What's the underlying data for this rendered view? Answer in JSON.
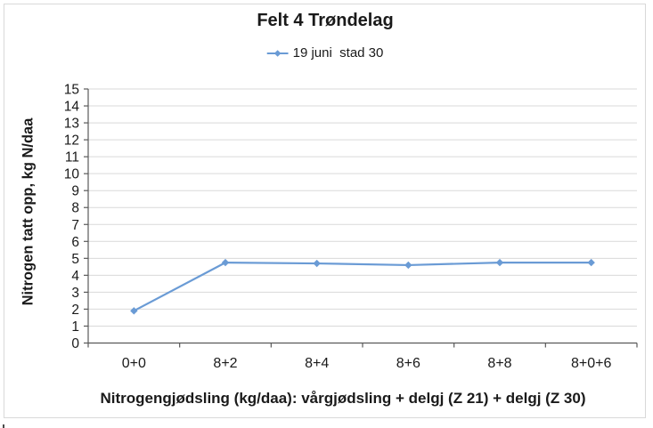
{
  "frame": {
    "border_color": "#d9d9d9",
    "background": "#ffffff"
  },
  "chart_data": {
    "type": "line",
    "title": "Felt 4 Trøndelag",
    "categories": [
      "0+0",
      "8+2",
      "8+4",
      "8+6",
      "8+8",
      "8+0+6"
    ],
    "series": [
      {
        "name": "19 juni  stad 30",
        "values": [
          1.9,
          4.75,
          4.7,
          4.6,
          4.75,
          4.75
        ],
        "color": "#6a9bd5",
        "marker": "diamond"
      }
    ],
    "xlabel": "Nitrogengjødsling (kg/daa): vårgjødsling + delgj (Z 21) + delgj (Z 30)",
    "ylabel": "Nitrogen tatt opp, kg N/daa",
    "ylim": [
      0,
      15
    ],
    "ytick_step": 1,
    "grid": "horizontal",
    "legend_position": "top",
    "gridline_color": "#d9d9d9",
    "axis_color": "#595959",
    "tick_label_color": "#1a1a1a"
  }
}
